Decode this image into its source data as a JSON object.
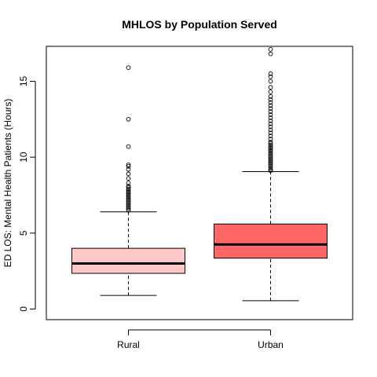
{
  "chart_data": {
    "type": "boxplot",
    "title": "MHLOS by Population Served",
    "xlabel": "",
    "ylabel": "ED LOS: Mental Health Patients (Hours)",
    "ylim": [
      -0.7,
      17.3
    ],
    "yticks": [
      0,
      5,
      10,
      15
    ],
    "grid": false,
    "legend": "none",
    "categories": [
      "Rural",
      "Urban"
    ],
    "boxes": [
      {
        "name": "Rural",
        "color": "#FFC8C8",
        "whisker_low": 0.9,
        "q1": 2.35,
        "median": 3.0,
        "q3": 4.0,
        "whisker_high": 6.4,
        "outliers": [
          6.5,
          6.6,
          6.7,
          6.8,
          6.9,
          7.0,
          7.1,
          7.2,
          7.3,
          7.4,
          7.5,
          7.6,
          7.7,
          7.8,
          7.9,
          8.0,
          8.1,
          8.3,
          8.6,
          8.9,
          9.2,
          9.4,
          9.5,
          10.7,
          12.5,
          15.9
        ]
      },
      {
        "name": "Urban",
        "color": "#FF6666",
        "whisker_low": 0.55,
        "q1": 3.35,
        "median": 4.25,
        "q3": 5.6,
        "whisker_high": 9.05,
        "outliers": [
          9.1,
          9.2,
          9.3,
          9.4,
          9.5,
          9.6,
          9.7,
          9.8,
          9.9,
          10.0,
          10.1,
          10.2,
          10.3,
          10.4,
          10.5,
          10.6,
          10.7,
          10.8,
          10.9,
          11.0,
          11.2,
          11.4,
          11.6,
          11.8,
          12.0,
          12.2,
          12.4,
          12.6,
          12.8,
          13.0,
          13.2,
          13.4,
          13.6,
          13.8,
          14.0,
          14.3,
          14.6,
          15.0,
          15.3,
          15.5,
          16.8,
          17.1
        ]
      }
    ]
  }
}
